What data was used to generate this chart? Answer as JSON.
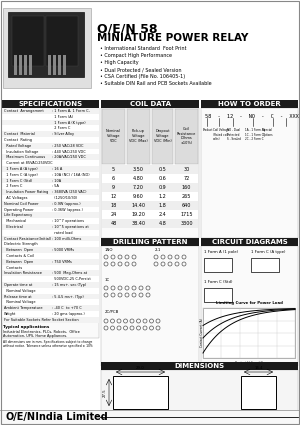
{
  "title_brand": "O/E/N 58",
  "title_main": "MINIATURE POWER RELAY",
  "bullets": [
    "International Standard  Foot Print",
    "Compact High Performance",
    "High Capacity",
    "Dual Protected / Sealed Version",
    "CSA Certified (File No. 106405-1)",
    "Suitable DIN Rail and PCB Sockets Available"
  ],
  "spec_header": "SPECIFICATIONS",
  "coil_header": "COIL DATA",
  "order_header": "HOW TO ORDER",
  "circuit_header": "CIRCUIT DIAGRAMS",
  "drilling_header": "DRILLING PATTERN",
  "dimensions_header": "DIMENSIONS",
  "spec_rows": [
    [
      "Contact  Arrangement",
      ": 1 Form A, 1 Form C,"
    ],
    [
      "",
      "  1 Form (A)"
    ],
    [
      "",
      "  1 Form A (K type)"
    ],
    [
      "",
      "  2 Form C"
    ],
    [
      "Contact  Material",
      ": Silver Alloy"
    ],
    [
      "Contact  Rating",
      ""
    ],
    [
      "  Rated Voltage",
      ": 250 VAC/28 VDC"
    ],
    [
      "  Insulation Voltage",
      ": 440 VAC/250 VDC"
    ],
    [
      "  Maximum Continuous",
      ": 20A/VAC/250 VDC"
    ],
    [
      "  Current at 85VAC/250VDC",
      ""
    ],
    [
      "  1 Form A (A type)",
      ": 16 A"
    ],
    [
      "  1 Form C (A type)",
      ": 10A (NC) / 16A (NO)"
    ],
    [
      "  1 Form C (Std)",
      ": 10A"
    ],
    [
      "  2 Form C",
      ": 5A"
    ],
    [
      "  Insulation Power Rating",
      ": 3680VA (250 VAC)"
    ],
    [
      "  AC Voltages",
      "  (1250/10/30)"
    ],
    [
      "Nominal Coil Power",
      ": 0.9W (approx.)"
    ],
    [
      "Operating Power",
      ": 0.36W (approx.)"
    ],
    [
      "Life Expectancy",
      ""
    ],
    [
      "  Mechanical",
      ": 10^7 operations"
    ],
    [
      "  Electrical",
      ": 10^5 operations at"
    ],
    [
      "",
      "  rated load"
    ],
    [
      "Contact Resistance(Initial)",
      ": 100 milli-Ohms"
    ],
    [
      "Dielectric Strength",
      ""
    ],
    [
      "  Between  Open",
      ": 5000 VRMs"
    ],
    [
      "  Contacts & Coil",
      ""
    ],
    [
      "  Between  Open",
      ": 750 VRMs"
    ],
    [
      "  Contacts",
      ""
    ],
    [
      "Insulation Resistance",
      ": 500  Meg-Ohms at"
    ],
    [
      "",
      "  500VDC,25 C,Persist"
    ],
    [
      "Operate time at",
      ": 15 ms+. sec.(Typ)"
    ],
    [
      "  Nominal Voltage",
      ""
    ],
    [
      "Release time at",
      ": 5 4-5 ms+. (Typ)"
    ],
    [
      "  Nominal Voltage",
      ""
    ],
    [
      "Ambient Temperature",
      ": -40 C  to +70 C"
    ],
    [
      "Weight",
      ": 20 gms (approx.)"
    ],
    [
      "For Suitable Sockets Refer Socket Section",
      ""
    ]
  ],
  "coil_data": [
    [
      "5",
      "3.50",
      "0.5",
      "30"
    ],
    [
      "6",
      "4.80",
      "0.6",
      "72"
    ],
    [
      "9",
      "7.20",
      "0.9",
      "160"
    ],
    [
      "12",
      "9.60",
      "1.2",
      "265"
    ],
    [
      "18",
      "14.40",
      "1.8",
      "640"
    ],
    [
      "24",
      "19.20",
      "2.4",
      "1715"
    ],
    [
      "48",
      "38.40",
      "4.8",
      "3300"
    ]
  ],
  "bg_color": "#ffffff",
  "header_bg": "#1a1a1a",
  "grid_color": "#cccccc",
  "relay_body": "#2a2a2a",
  "relay_dark": "#111111"
}
